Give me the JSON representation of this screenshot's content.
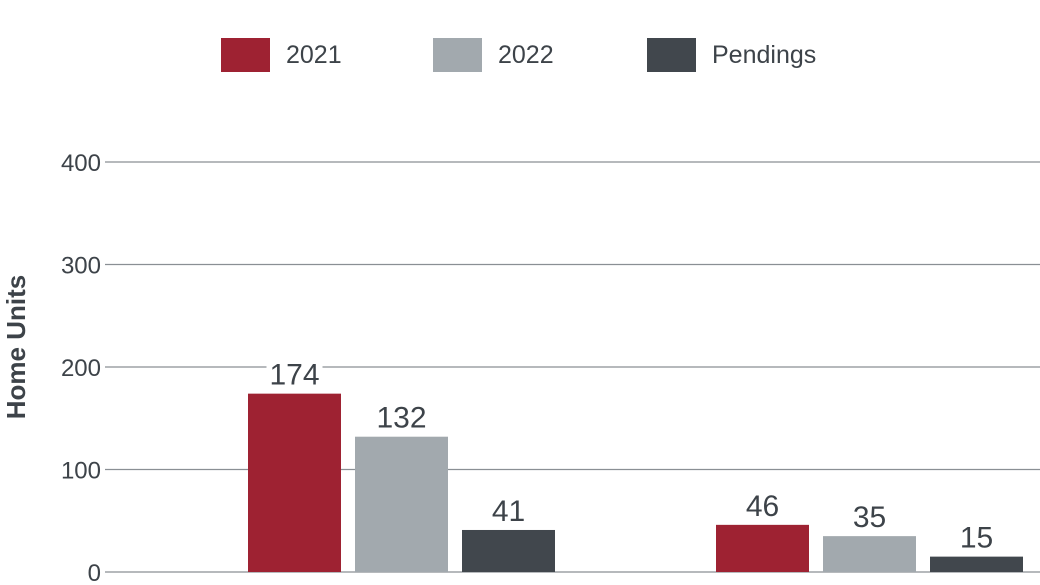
{
  "chart_data": {
    "type": "bar",
    "title": "",
    "xlabel": "",
    "ylabel": "Home Units",
    "ylim": [
      0,
      400
    ],
    "yticks": [
      0,
      100,
      200,
      300,
      400
    ],
    "grid": true,
    "legend_position": "top",
    "categories": [
      "",
      ""
    ],
    "series": [
      {
        "name": "2021",
        "color": "#9e2232",
        "values": [
          174,
          46
        ]
      },
      {
        "name": "2022",
        "color": "#a2a9ae",
        "values": [
          132,
          35
        ]
      },
      {
        "name": "Pendings",
        "color": "#41474d",
        "values": [
          41,
          15
        ]
      }
    ]
  },
  "colors": {
    "text": "#3d4349",
    "grid": "#8a8f94"
  }
}
